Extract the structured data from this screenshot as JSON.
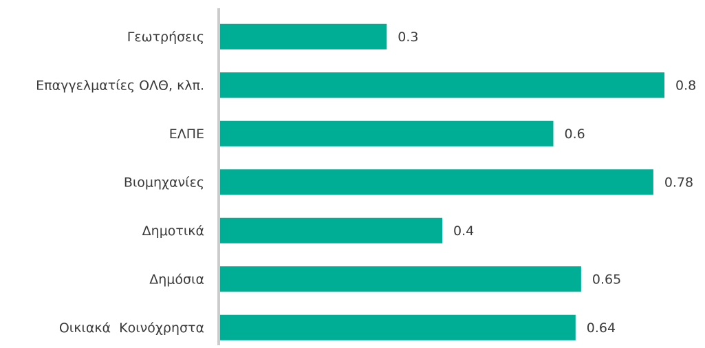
{
  "chart_data": {
    "type": "bar",
    "orientation": "horizontal",
    "categories": [
      "Γεωτρήσεις",
      "Επαγγελματίες ΟΛΘ, κλπ.",
      "ΕΛΠΕ",
      "Βιομηχανίες",
      "Δημοτικά",
      "Δημόσια",
      "Οικιακά  Κοινόχρηστα"
    ],
    "values": [
      0.3,
      0.8,
      0.6,
      0.78,
      0.4,
      0.65,
      0.64
    ],
    "color": "#00ad95",
    "xlim": [
      0,
      0.8
    ]
  }
}
